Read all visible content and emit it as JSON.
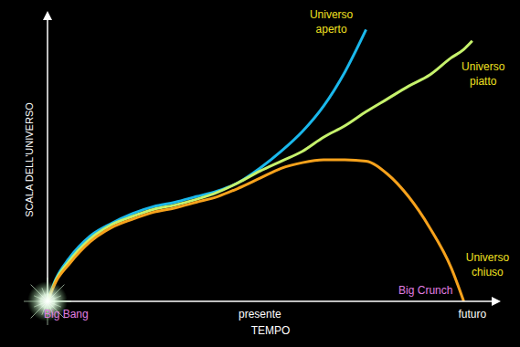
{
  "chart_data": {
    "type": "line",
    "x_label": "TEMPO",
    "y_label": "SCALA DELL'UNIVERSO",
    "x": [
      0,
      2,
      5,
      10,
      15,
      20,
      25,
      30,
      35,
      40,
      45,
      50,
      55,
      60,
      65,
      70,
      75,
      80,
      85,
      90,
      95,
      98,
      100
    ],
    "xlim": [
      0,
      105
    ],
    "xticks": [
      {
        "value": 0,
        "label": "Big Bang"
      },
      {
        "value": 50,
        "label": "presente"
      },
      {
        "value": 100,
        "label": "futuro"
      }
    ],
    "ylim": [
      0,
      100
    ],
    "tick_labels": "x",
    "grid": false,
    "series": [
      {
        "name": "Universo aperto",
        "color": "#1ab8ec",
        "values": [
          0,
          8,
          15,
          23,
          27.5,
          31,
          33.5,
          35,
          37,
          39,
          42,
          47,
          53,
          60,
          69,
          81,
          96,
          null,
          null,
          null,
          null,
          null,
          null
        ]
      },
      {
        "name": "Universo piatto",
        "color": "#c6f26c",
        "values": [
          0,
          7.5,
          14,
          22,
          27,
          30,
          32.5,
          34,
          36,
          38.5,
          42,
          46,
          49.5,
          53,
          58,
          62,
          67,
          71.5,
          76,
          80,
          86,
          89,
          92
        ]
      },
      {
        "name": "Universo chiuso",
        "color": "#f7a21c",
        "values": [
          0,
          7,
          13,
          21,
          26,
          29,
          31.5,
          33,
          35,
          37,
          40,
          43.5,
          47,
          49,
          50,
          50,
          49.5,
          45,
          37,
          26,
          12,
          0,
          null
        ]
      }
    ],
    "annotations": [
      {
        "text": "Big Crunch",
        "x": 98,
        "y": 0
      }
    ]
  }
}
